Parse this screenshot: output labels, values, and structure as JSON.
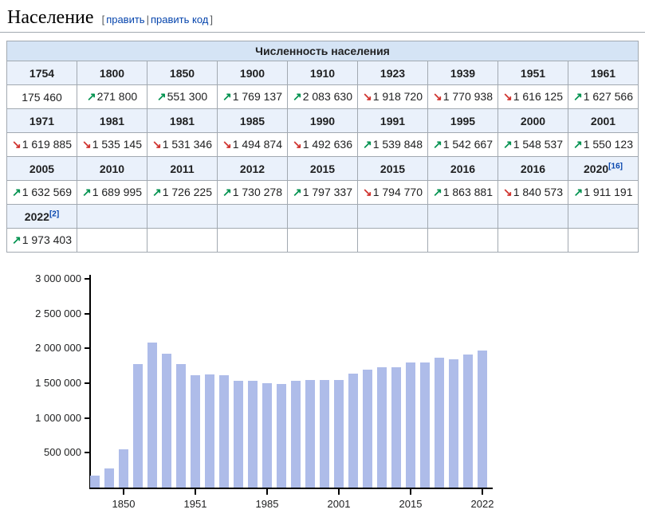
{
  "page": {
    "title": "Население",
    "edit": {
      "bracket_open": "[",
      "edit_label": "править",
      "separator": "|",
      "edit_code_label": "править код",
      "bracket_close": "]"
    }
  },
  "colors": {
    "link_blue": "#0645ad",
    "edit_bracket_gray": "#54595d",
    "table_border": "#a2a9b1",
    "table_caption_bg": "#d5e4f5",
    "table_year_bg": "#eaf1fb",
    "trend_up_green": "#00924f",
    "trend_down_red": "#d0332e",
    "bar_fill": "#aebce9",
    "axis_black": "#000000"
  },
  "table": {
    "caption": "Численность населения",
    "row_groups": [
      {
        "years": [
          {
            "label": "1754"
          },
          {
            "label": "1800"
          },
          {
            "label": "1850"
          },
          {
            "label": "1900"
          },
          {
            "label": "1910"
          },
          {
            "label": "1923"
          },
          {
            "label": "1939"
          },
          {
            "label": "1951"
          },
          {
            "label": "1961"
          }
        ],
        "values": [
          {
            "trend": null,
            "text": "175 460"
          },
          {
            "trend": "up",
            "text": "271 800"
          },
          {
            "trend": "up",
            "text": "551 300"
          },
          {
            "trend": "up",
            "text": "1 769 137"
          },
          {
            "trend": "up",
            "text": "2 083 630"
          },
          {
            "trend": "down",
            "text": "1 918 720"
          },
          {
            "trend": "down",
            "text": "1 770 938"
          },
          {
            "trend": "down",
            "text": "1 616 125"
          },
          {
            "trend": "up",
            "text": "1 627 566"
          }
        ]
      },
      {
        "years": [
          {
            "label": "1971"
          },
          {
            "label": "1981"
          },
          {
            "label": "1981"
          },
          {
            "label": "1985"
          },
          {
            "label": "1990"
          },
          {
            "label": "1991"
          },
          {
            "label": "1995"
          },
          {
            "label": "2000"
          },
          {
            "label": "2001"
          }
        ],
        "values": [
          {
            "trend": "down",
            "text": "1 619 885"
          },
          {
            "trend": "down",
            "text": "1 535 145"
          },
          {
            "trend": "down",
            "text": "1 531 346"
          },
          {
            "trend": "down",
            "text": "1 494 874"
          },
          {
            "trend": "down",
            "text": "1 492 636"
          },
          {
            "trend": "up",
            "text": "1 539 848"
          },
          {
            "trend": "up",
            "text": "1 542 667"
          },
          {
            "trend": "up",
            "text": "1 548 537"
          },
          {
            "trend": "up",
            "text": "1 550 123"
          }
        ]
      },
      {
        "years": [
          {
            "label": "2005"
          },
          {
            "label": "2010"
          },
          {
            "label": "2011"
          },
          {
            "label": "2012"
          },
          {
            "label": "2015"
          },
          {
            "label": "2015"
          },
          {
            "label": "2016"
          },
          {
            "label": "2016"
          },
          {
            "label": "2020",
            "ref": "[16]"
          }
        ],
        "values": [
          {
            "trend": "up",
            "text": "1 632 569"
          },
          {
            "trend": "up",
            "text": "1 689 995"
          },
          {
            "trend": "up",
            "text": "1 726 225"
          },
          {
            "trend": "up",
            "text": "1 730 278"
          },
          {
            "trend": "up",
            "text": "1 797 337"
          },
          {
            "trend": "down",
            "text": "1 794 770"
          },
          {
            "trend": "up",
            "text": "1 863 881"
          },
          {
            "trend": "down",
            "text": "1 840 573"
          },
          {
            "trend": "up",
            "text": "1 911 191"
          }
        ]
      },
      {
        "years": [
          {
            "label": "2022",
            "ref": "[2]"
          },
          {
            "label": ""
          },
          {
            "label": ""
          },
          {
            "label": ""
          },
          {
            "label": ""
          },
          {
            "label": ""
          },
          {
            "label": ""
          },
          {
            "label": ""
          },
          {
            "label": ""
          }
        ],
        "values": [
          {
            "trend": "up",
            "text": "1 973 403"
          },
          {
            "trend": null,
            "text": ""
          },
          {
            "trend": null,
            "text": ""
          },
          {
            "trend": null,
            "text": ""
          },
          {
            "trend": null,
            "text": ""
          },
          {
            "trend": null,
            "text": ""
          },
          {
            "trend": null,
            "text": ""
          },
          {
            "trend": null,
            "text": ""
          },
          {
            "trend": null,
            "text": ""
          }
        ]
      }
    ]
  },
  "chart_data": {
    "type": "bar",
    "title": "",
    "xlabel": "",
    "ylabel": "",
    "x": [
      1754,
      1800,
      1850,
      1900,
      1910,
      1923,
      1939,
      1951,
      1961,
      1971,
      1981,
      1981,
      1985,
      1990,
      1991,
      1995,
      2000,
      2001,
      2005,
      2010,
      2011,
      2012,
      2015,
      2015,
      2016,
      2016,
      2020,
      2022
    ],
    "values": [
      175460,
      271800,
      551300,
      1769137,
      2083630,
      1918720,
      1770938,
      1616125,
      1627566,
      1619885,
      1535145,
      1531346,
      1494874,
      1492636,
      1539848,
      1542667,
      1548537,
      1550123,
      1632569,
      1689995,
      1726225,
      1730278,
      1797337,
      1794770,
      1863881,
      1840573,
      1911191,
      1973403
    ],
    "ylim": [
      0,
      3000000
    ],
    "ytick_step": 500000,
    "ytick_labels": [
      "500 000",
      "1 000 000",
      "1 500 000",
      "2 000 000",
      "2 500 000",
      "3 000 000"
    ],
    "xtick_indices": [
      2,
      7,
      12,
      17,
      22,
      27
    ],
    "xtick_labels": [
      "1850",
      "1951",
      "1985",
      "2001",
      "2015",
      "2022"
    ],
    "grid": false,
    "legend": false,
    "bar_color": "#aebce9"
  }
}
